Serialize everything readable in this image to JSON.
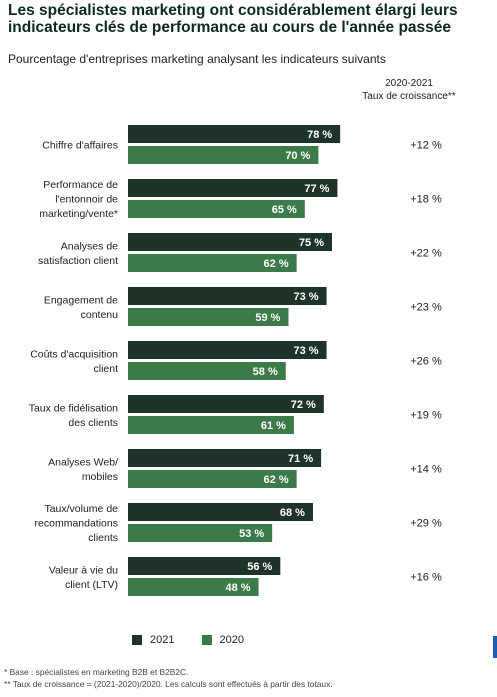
{
  "header": {
    "title": "Les spécialistes marketing ont considérablement élargi leurs\nindicateurs clés de performance au cours de l'année passée",
    "subtitle": "Pourcentage d'entreprises marketing analysant les indicateurs suivants",
    "growth_header": "2020-2021\nTaux de croissance**"
  },
  "colors": {
    "y2021": "#1f3428",
    "y2020": "#3d7a4a",
    "title": "#0d2a1a"
  },
  "chart_data": {
    "type": "bar",
    "orientation": "horizontal",
    "categories": [
      [
        "Chiffre d'affaires"
      ],
      [
        "Performance de",
        "l'entonnoir de",
        "marketing/vente*"
      ],
      [
        "Analyses de",
        "satisfaction client"
      ],
      [
        "Engagement de",
        "contenu"
      ],
      [
        "Coûts d'acquisition",
        "client"
      ],
      [
        "Taux de fidélisation",
        "des clients"
      ],
      [
        "Analyses Web/",
        "mobiles"
      ],
      [
        "Taux/volume de",
        "recommandations",
        "clients"
      ],
      [
        "Valeur à vie du",
        "client (LTV)"
      ]
    ],
    "series": [
      {
        "name": "2021",
        "values": [
          78,
          77,
          75,
          73,
          73,
          72,
          71,
          68,
          56
        ]
      },
      {
        "name": "2020",
        "values": [
          70,
          65,
          62,
          59,
          58,
          61,
          62,
          53,
          48
        ]
      }
    ],
    "data_labels": [
      [
        "78 %",
        "77 %",
        "75 %",
        "73 %",
        "73 %",
        "72 %",
        "71 %",
        "68 %",
        "56 %"
      ],
      [
        "70 %",
        "65 %",
        "62 %",
        "59 %",
        "58 %",
        "61 %",
        "62 %",
        "53 %",
        "48 %"
      ]
    ],
    "growth": [
      "+12 %",
      "+18 %",
      "+22 %",
      "+23 %",
      "+26 %",
      "+19 %",
      "+14 %",
      "+29 %",
      "+16 %"
    ],
    "xlim": [
      0,
      100
    ],
    "grid": false,
    "legend_position": "bottom"
  },
  "legend": {
    "y2021": "2021",
    "y2020": "2020"
  },
  "footnotes": [
    "* Base : spécialistes en marketing B2B et B2B2C.",
    "** Taux de croissance = (2021-2020)/2020. Les calculs sont effectués à partir des totaux."
  ]
}
